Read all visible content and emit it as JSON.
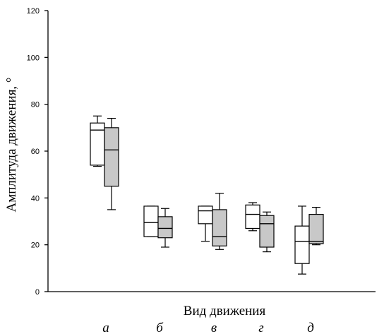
{
  "chart_data": {
    "type": "boxplot",
    "ylabel": "Амплитуда движения, °",
    "xlabel": "Вид движения",
    "ylim": [
      0,
      120
    ],
    "yticks": [
      0,
      20,
      40,
      60,
      80,
      100,
      120
    ],
    "categories": [
      "а",
      "б",
      "в",
      "г",
      "д"
    ],
    "series": [
      {
        "fill": "#ffffff",
        "boxes": [
          {
            "min": 53.5,
            "q1": 54,
            "median": 69,
            "q3": 72,
            "max": 75
          },
          {
            "min": 23.5,
            "q1": 23.5,
            "median": 29.5,
            "q3": 36.5,
            "max": 36.5
          },
          {
            "min": 21.5,
            "q1": 29,
            "median": 34.5,
            "q3": 36.5,
            "max": 36.5
          },
          {
            "min": 26,
            "q1": 27,
            "median": 33,
            "q3": 37,
            "max": 38
          },
          {
            "min": 7.5,
            "q1": 12,
            "median": 21.5,
            "q3": 28,
            "max": 36.5
          }
        ]
      },
      {
        "fill": "#c8c8c8",
        "boxes": [
          {
            "min": 35,
            "q1": 45,
            "median": 60.5,
            "q3": 70,
            "max": 74
          },
          {
            "min": 19,
            "q1": 23,
            "median": 27,
            "q3": 32,
            "max": 35.5
          },
          {
            "min": 18,
            "q1": 19.5,
            "median": 23.5,
            "q3": 35,
            "max": 42
          },
          {
            "min": 17,
            "q1": 19,
            "median": 29,
            "q3": 32.5,
            "max": 34
          },
          {
            "min": 20,
            "q1": 20.5,
            "median": 21.5,
            "q3": 33,
            "max": 36
          }
        ]
      }
    ]
  }
}
